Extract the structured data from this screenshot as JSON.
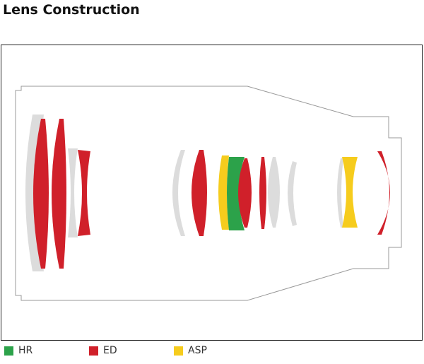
{
  "header": {
    "title": "Lens Construction"
  },
  "legend": {
    "items": [
      {
        "label": "HR"
      },
      {
        "label": "ED"
      },
      {
        "label": "ASP"
      }
    ]
  }
}
